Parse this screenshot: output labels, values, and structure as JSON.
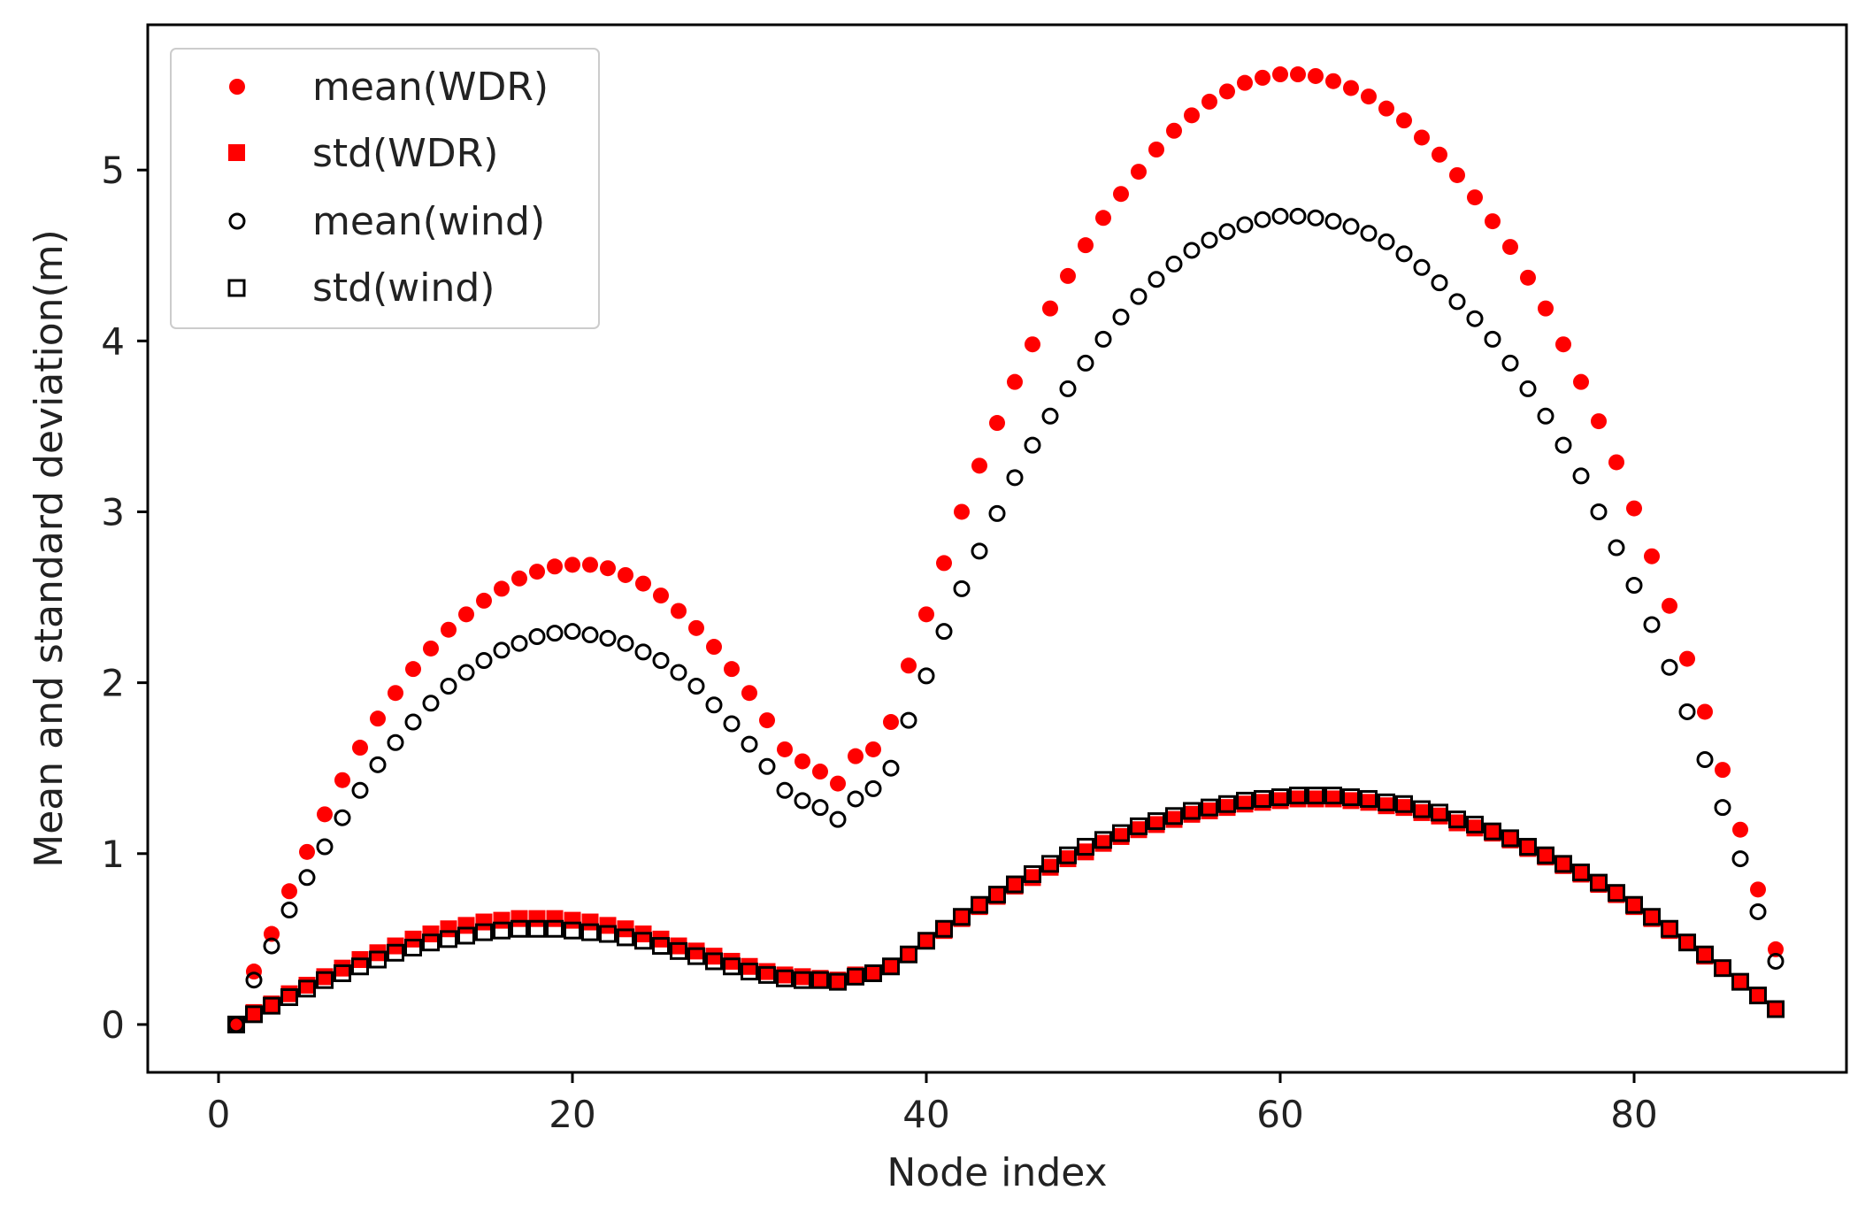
{
  "chart_data": {
    "type": "scatter",
    "title": "",
    "xlabel": "Node index",
    "ylabel": "Mean and standard deviation(m)",
    "xlim": [
      -4,
      92
    ],
    "ylim": [
      -0.28,
      5.85
    ],
    "xticks": [
      0,
      20,
      40,
      60,
      80
    ],
    "yticks": [
      0,
      1,
      2,
      3,
      4,
      5
    ],
    "legend_position": "top-left",
    "x": [
      1,
      2,
      3,
      4,
      5,
      6,
      7,
      8,
      9,
      10,
      11,
      12,
      13,
      14,
      15,
      16,
      17,
      18,
      19,
      20,
      21,
      22,
      23,
      24,
      25,
      26,
      27,
      28,
      29,
      30,
      31,
      32,
      33,
      34,
      35,
      36,
      37,
      38,
      39,
      40,
      41,
      42,
      43,
      44,
      45,
      46,
      47,
      48,
      49,
      50,
      51,
      52,
      53,
      54,
      55,
      56,
      57,
      58,
      59,
      60,
      61,
      62,
      63,
      64,
      65,
      66,
      67,
      68,
      69,
      70,
      71,
      72,
      73,
      74,
      75,
      76,
      77,
      78,
      79,
      80,
      81,
      82,
      83,
      84,
      85,
      86,
      87,
      88
    ],
    "series": [
      {
        "name": "mean(WDR)",
        "marker": "filled-circle",
        "color": "#ff0000",
        "values": [
          0.0,
          0.31,
          0.53,
          0.78,
          1.01,
          1.23,
          1.43,
          1.62,
          1.79,
          1.94,
          2.08,
          2.2,
          2.31,
          2.4,
          2.48,
          2.55,
          2.61,
          2.65,
          2.68,
          2.69,
          2.69,
          2.67,
          2.63,
          2.58,
          2.51,
          2.42,
          2.32,
          2.21,
          2.08,
          1.94,
          1.78,
          1.61,
          1.54,
          1.48,
          1.41,
          1.57,
          1.61,
          1.77,
          2.1,
          2.4,
          2.7,
          3.0,
          3.27,
          3.52,
          3.76,
          3.98,
          4.19,
          4.38,
          4.56,
          4.72,
          4.86,
          4.99,
          5.12,
          5.23,
          5.32,
          5.4,
          5.46,
          5.51,
          5.54,
          5.56,
          5.56,
          5.55,
          5.52,
          5.48,
          5.43,
          5.36,
          5.29,
          5.19,
          5.09,
          4.97,
          4.84,
          4.7,
          4.55,
          4.37,
          4.19,
          3.98,
          3.76,
          3.53,
          3.29,
          3.02,
          2.74,
          2.45,
          2.14,
          1.83,
          1.49,
          1.14,
          0.79,
          0.44
        ]
      },
      {
        "name": "std(WDR)",
        "marker": "filled-square",
        "color": "#ff0000",
        "values": [
          0.0,
          0.07,
          0.12,
          0.18,
          0.23,
          0.28,
          0.33,
          0.38,
          0.42,
          0.46,
          0.5,
          0.53,
          0.56,
          0.58,
          0.6,
          0.61,
          0.62,
          0.62,
          0.62,
          0.61,
          0.6,
          0.58,
          0.56,
          0.53,
          0.5,
          0.46,
          0.43,
          0.4,
          0.37,
          0.34,
          0.31,
          0.29,
          0.28,
          0.27,
          0.26,
          0.29,
          0.3,
          0.34,
          0.41,
          0.49,
          0.55,
          0.62,
          0.69,
          0.75,
          0.81,
          0.86,
          0.92,
          0.97,
          1.01,
          1.06,
          1.1,
          1.14,
          1.17,
          1.2,
          1.23,
          1.25,
          1.27,
          1.29,
          1.3,
          1.31,
          1.32,
          1.32,
          1.32,
          1.31,
          1.3,
          1.28,
          1.27,
          1.24,
          1.22,
          1.18,
          1.15,
          1.12,
          1.08,
          1.03,
          0.98,
          0.93,
          0.88,
          0.82,
          0.76,
          0.69,
          0.62,
          0.55,
          0.48,
          0.4,
          0.33,
          0.25,
          0.17,
          0.09
        ]
      },
      {
        "name": "mean(wind)",
        "marker": "open-circle",
        "color": "#000000",
        "values": [
          0.0,
          0.26,
          0.46,
          0.67,
          0.86,
          1.04,
          1.21,
          1.37,
          1.52,
          1.65,
          1.77,
          1.88,
          1.98,
          2.06,
          2.13,
          2.19,
          2.23,
          2.27,
          2.29,
          2.3,
          2.28,
          2.26,
          2.23,
          2.18,
          2.13,
          2.06,
          1.98,
          1.87,
          1.76,
          1.64,
          1.51,
          1.37,
          1.31,
          1.27,
          1.2,
          1.32,
          1.38,
          1.5,
          1.78,
          2.04,
          2.3,
          2.55,
          2.77,
          2.99,
          3.2,
          3.39,
          3.56,
          3.72,
          3.87,
          4.01,
          4.14,
          4.26,
          4.36,
          4.45,
          4.53,
          4.59,
          4.64,
          4.68,
          4.71,
          4.73,
          4.73,
          4.72,
          4.7,
          4.67,
          4.63,
          4.58,
          4.51,
          4.43,
          4.34,
          4.23,
          4.13,
          4.01,
          3.87,
          3.72,
          3.56,
          3.39,
          3.21,
          3.0,
          2.79,
          2.57,
          2.34,
          2.09,
          1.83,
          1.55,
          1.27,
          0.97,
          0.66,
          0.37
        ]
      },
      {
        "name": "std(wind)",
        "marker": "open-square",
        "color": "#000000",
        "values": [
          0.0,
          0.06,
          0.11,
          0.16,
          0.21,
          0.26,
          0.3,
          0.34,
          0.38,
          0.42,
          0.45,
          0.48,
          0.5,
          0.52,
          0.54,
          0.55,
          0.56,
          0.56,
          0.56,
          0.55,
          0.54,
          0.53,
          0.51,
          0.49,
          0.46,
          0.43,
          0.4,
          0.37,
          0.34,
          0.31,
          0.29,
          0.27,
          0.26,
          0.26,
          0.25,
          0.28,
          0.3,
          0.34,
          0.41,
          0.49,
          0.56,
          0.63,
          0.7,
          0.76,
          0.82,
          0.88,
          0.94,
          0.99,
          1.04,
          1.08,
          1.12,
          1.16,
          1.19,
          1.22,
          1.25,
          1.27,
          1.29,
          1.31,
          1.32,
          1.33,
          1.34,
          1.34,
          1.34,
          1.33,
          1.32,
          1.3,
          1.29,
          1.26,
          1.24,
          1.2,
          1.17,
          1.13,
          1.09,
          1.04,
          0.99,
          0.94,
          0.89,
          0.83,
          0.77,
          0.7,
          0.63,
          0.56,
          0.48,
          0.41,
          0.33,
          0.25,
          0.17,
          0.09
        ]
      }
    ]
  }
}
